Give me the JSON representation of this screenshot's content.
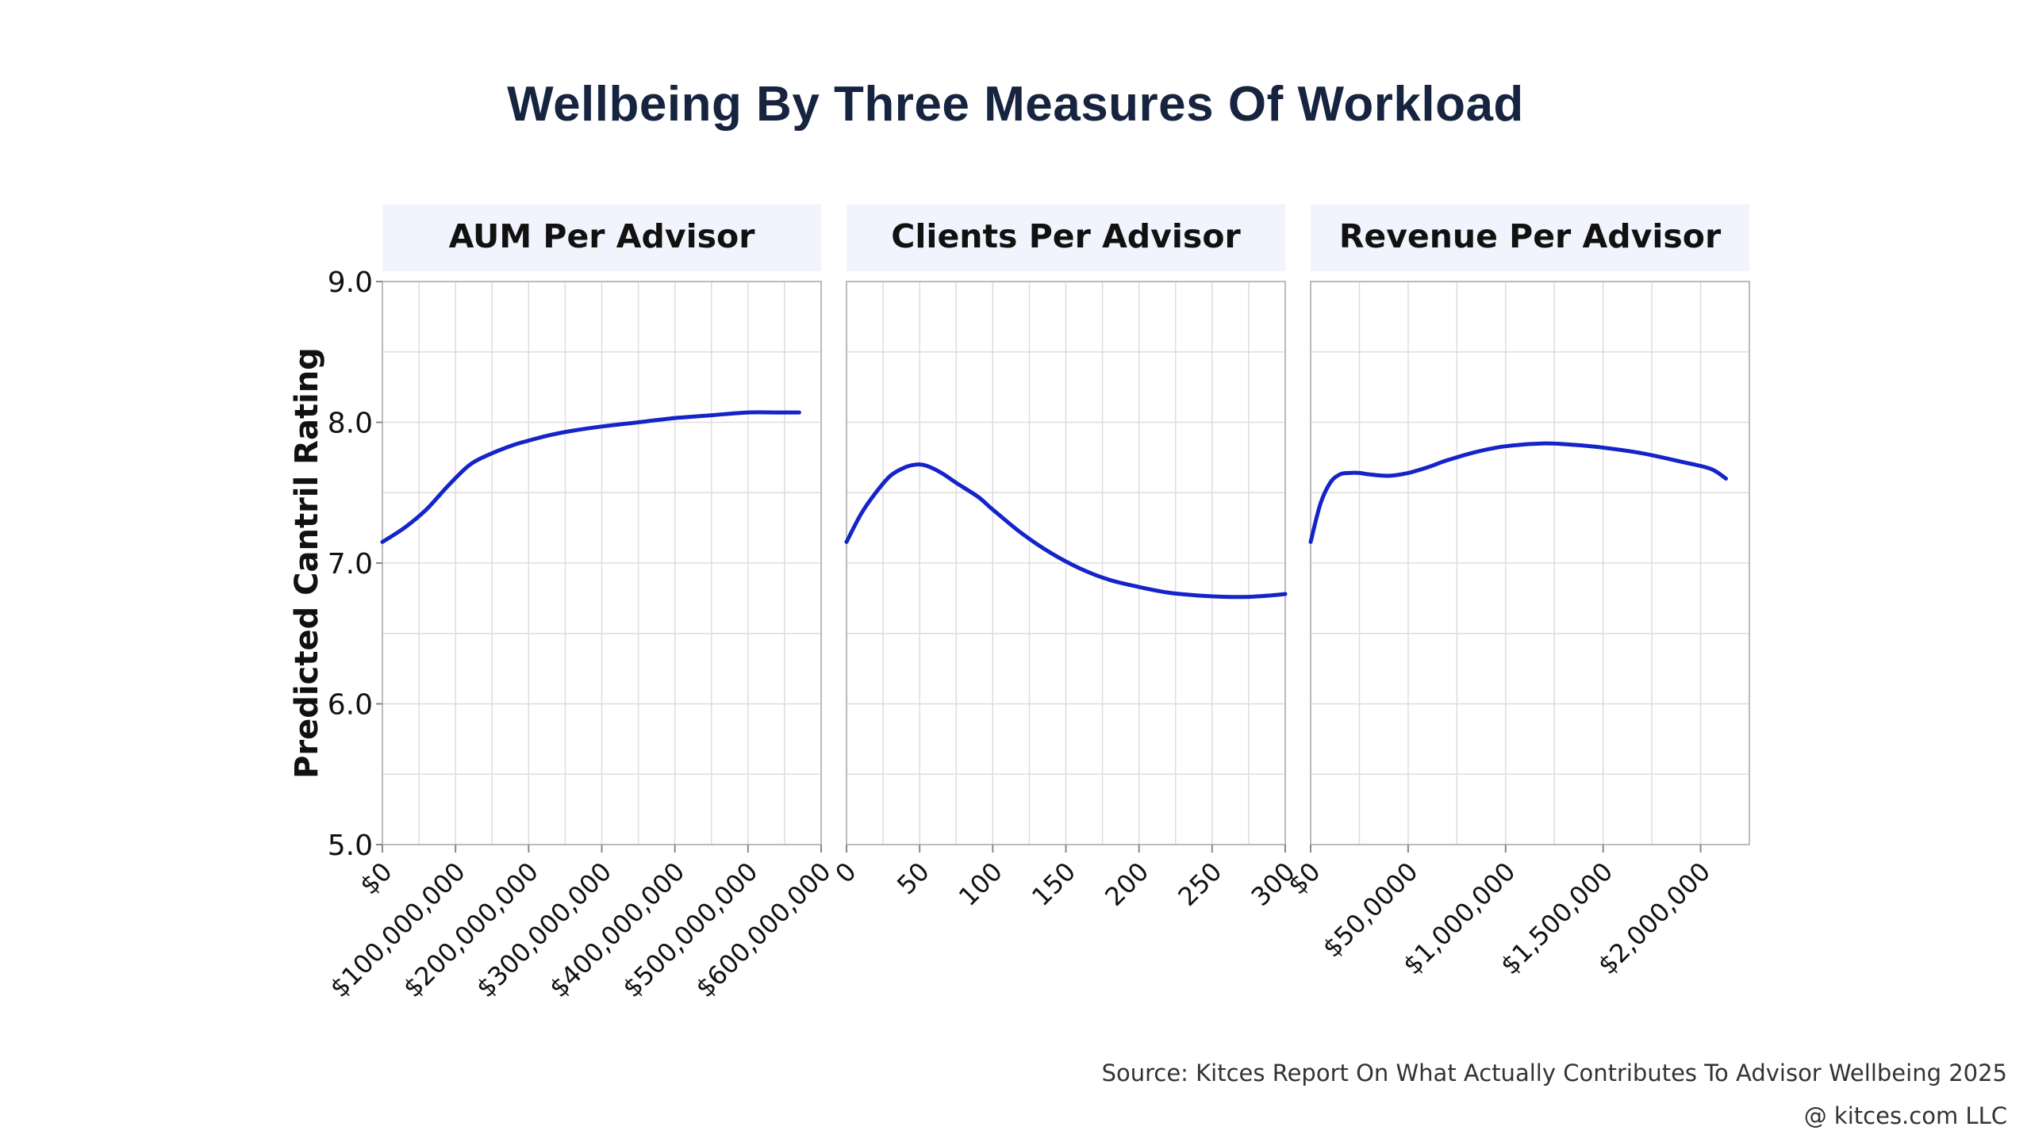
{
  "chart_data": {
    "type": "line",
    "title": "Wellbeing By Three Measures Of Workload",
    "ylabel": "Predicted Cantril Rating",
    "ylim": [
      5.0,
      9.0
    ],
    "yticks": [
      "5.0",
      "6.0",
      "7.0",
      "8.0",
      "9.0"
    ],
    "grid": true,
    "line_color": "#1424c8",
    "panel_header_color": "#f2f4fd",
    "panels": [
      {
        "label": "AUM Per Advisor",
        "xlim": [
          0,
          600000000
        ],
        "xticks": [
          0,
          100000000,
          200000000,
          300000000,
          400000000,
          500000000,
          600000000
        ],
        "xtick_labels": [
          "$0",
          "$100,000,000",
          "$200,000,000",
          "$300,000,000",
          "$400,000,000",
          "$500,000,000",
          "$600,000,000"
        ],
        "series": [
          {
            "x": [
              0,
              30000000,
              60000000,
              90000000,
              120000000,
              150000000,
              180000000,
              200000000,
              230000000,
              260000000,
              300000000,
              350000000,
              400000000,
              450000000,
              500000000,
              540000000,
              570000000
            ],
            "y": [
              7.15,
              7.25,
              7.38,
              7.55,
              7.7,
              7.78,
              7.84,
              7.87,
              7.91,
              7.94,
              7.97,
              8.0,
              8.03,
              8.05,
              8.07,
              8.07,
              8.07
            ]
          }
        ]
      },
      {
        "label": "Clients Per Advisor",
        "xlim": [
          0,
          300
        ],
        "xticks": [
          0,
          50,
          100,
          150,
          200,
          250,
          300
        ],
        "xtick_labels": [
          "0",
          "50",
          "100",
          "150",
          "200",
          "250",
          "300"
        ],
        "series": [
          {
            "x": [
              0,
              10,
              20,
              30,
              40,
              48,
              55,
              65,
              75,
              90,
              100,
              120,
              140,
              160,
              180,
              200,
              220,
              240,
              260,
              275,
              290,
              300
            ],
            "y": [
              7.15,
              7.35,
              7.5,
              7.62,
              7.68,
              7.7,
              7.69,
              7.64,
              7.57,
              7.47,
              7.38,
              7.21,
              7.07,
              6.96,
              6.88,
              6.83,
              6.79,
              6.77,
              6.76,
              6.76,
              6.77,
              6.78
            ]
          }
        ]
      },
      {
        "label": "Revenue Per Advisor",
        "xlim": [
          0,
          2250000
        ],
        "xticks": [
          0,
          500000,
          1000000,
          1500000,
          2000000
        ],
        "xtick_labels": [
          "$0",
          "$50,0000",
          "$1,000,000",
          "$1,500,000",
          "$2,000,000"
        ],
        "series": [
          {
            "x": [
              0,
              50000,
              100000,
              150000,
              200000,
              250000,
              300000,
              400000,
              500000,
              600000,
              700000,
              850000,
              1000000,
              1200000,
              1350000,
              1500000,
              1700000,
              1900000,
              2050000,
              2130000
            ],
            "y": [
              7.15,
              7.42,
              7.57,
              7.63,
              7.64,
              7.64,
              7.63,
              7.62,
              7.64,
              7.68,
              7.73,
              7.79,
              7.83,
              7.85,
              7.84,
              7.82,
              7.78,
              7.72,
              7.67,
              7.6
            ]
          }
        ]
      }
    ]
  },
  "footer": {
    "source": "Source: Kitces Report On What Actually Contributes To Advisor Wellbeing 2025",
    "copyright": "@ kitces.com LLC"
  }
}
